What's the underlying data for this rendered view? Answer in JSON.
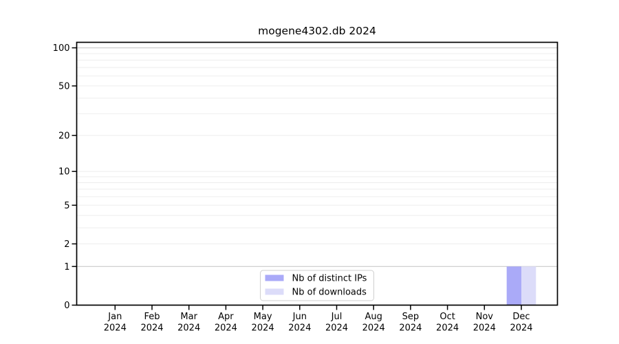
{
  "figure": {
    "title": "mogene4302.db 2024"
  },
  "chart_data": {
    "type": "bar",
    "title": "mogene4302.db 2024",
    "xlabel": "",
    "ylabel": "",
    "yscale": "log1p",
    "ylim": [
      0,
      110.5
    ],
    "grid": "on",
    "legend_position": "bottom-center",
    "x_tick_labels": [
      {
        "line1": "Jan",
        "line2": "2024"
      },
      {
        "line1": "Feb",
        "line2": "2024"
      },
      {
        "line1": "Mar",
        "line2": "2024"
      },
      {
        "line1": "Apr",
        "line2": "2024"
      },
      {
        "line1": "May",
        "line2": "2024"
      },
      {
        "line1": "Jun",
        "line2": "2024"
      },
      {
        "line1": "Jul",
        "line2": "2024"
      },
      {
        "line1": "Aug",
        "line2": "2024"
      },
      {
        "line1": "Sep",
        "line2": "2024"
      },
      {
        "line1": "Oct",
        "line2": "2024"
      },
      {
        "line1": "Nov",
        "line2": "2024"
      },
      {
        "line1": "Dec",
        "line2": "2024"
      }
    ],
    "categories": [
      "Jan 2024",
      "Feb 2024",
      "Mar 2024",
      "Apr 2024",
      "May 2024",
      "Jun 2024",
      "Jul 2024",
      "Aug 2024",
      "Sep 2024",
      "Oct 2024",
      "Nov 2024",
      "Dec 2024"
    ],
    "series": [
      {
        "name": "Nb of distinct IPs",
        "color": "#aaaaf8",
        "values": [
          0,
          0,
          0,
          0,
          0,
          0,
          0,
          0,
          0,
          0,
          0,
          1
        ]
      },
      {
        "name": "Nb of downloads",
        "color": "#dcdcf9",
        "values": [
          0,
          0,
          0,
          0,
          0,
          0,
          0,
          0,
          0,
          0,
          0,
          1
        ]
      }
    ],
    "yticks": [
      {
        "value": 0,
        "label": "0"
      },
      {
        "value": 1,
        "label": "1"
      },
      {
        "value": 2,
        "label": "2"
      },
      {
        "value": 5,
        "label": "5"
      },
      {
        "value": 10,
        "label": "10"
      },
      {
        "value": 20,
        "label": "20"
      },
      {
        "value": 50,
        "label": "50"
      },
      {
        "value": 100,
        "label": "100"
      }
    ],
    "gridlines": {
      "minor_values": [
        2,
        3,
        4,
        5,
        6,
        7,
        8,
        9,
        10,
        20,
        30,
        40,
        50,
        60,
        70,
        80,
        90
      ],
      "major_values": [
        1,
        100
      ],
      "minor_color": "#ededed",
      "major_color": "#c9c9c9"
    },
    "colors": {
      "spine": "#000000",
      "legend_border": "#cfcfcf",
      "legend_background": "#ffffff",
      "text": "#000000"
    }
  }
}
